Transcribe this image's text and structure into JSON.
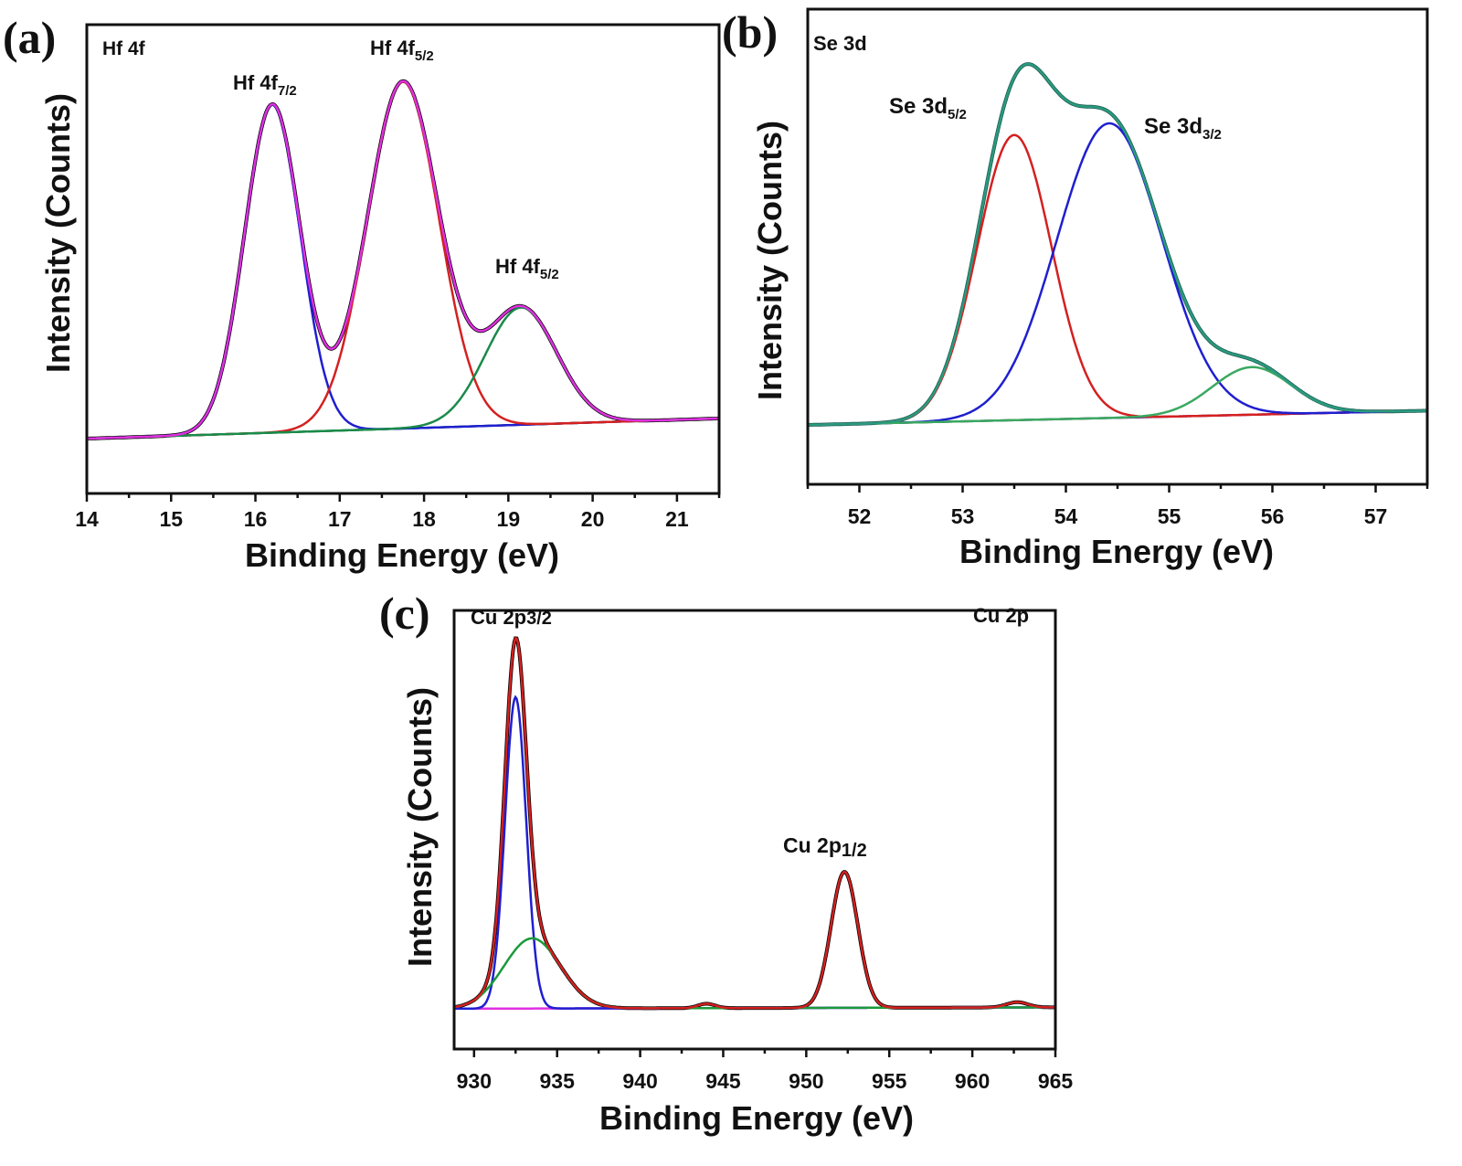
{
  "chart_data": [
    {
      "type": "line",
      "panel_label": "(a)",
      "title": "Hf 4f",
      "xlabel": "Binding Energy (eV)",
      "ylabel": "Intensity (Counts)",
      "xlim": [
        14,
        21.5
      ],
      "ylim": [
        0,
        1
      ],
      "xticks": [
        14,
        15,
        16,
        17,
        18,
        19,
        20,
        21
      ],
      "y_units": "arbitrary (no tick labels)",
      "grid": false,
      "background": {
        "x": [
          14,
          21.5
        ],
        "y": [
          0.117,
          0.16
        ],
        "color": "#1a8a3a"
      },
      "peaks": [
        {
          "center": 16.2,
          "amplitude": 0.7,
          "fwhm": 0.78,
          "color": "#1f1fd0"
        },
        {
          "center": 17.75,
          "amplitude": 0.74,
          "fwhm": 1.0,
          "color": "#d42020"
        },
        {
          "center": 19.15,
          "amplitude": 0.25,
          "fwhm": 1.0,
          "color": "#1a8a4a"
        }
      ],
      "data_color": "#000000",
      "fit_color": "#e030e0",
      "annotations": [
        {
          "text": "Hf 4f",
          "sub": "7/2"
        },
        {
          "text": "Hf 4f",
          "sub": "5/2"
        },
        {
          "text": "Hf 4f",
          "sub": "5/2"
        }
      ]
    },
    {
      "type": "line",
      "panel_label": "(b)",
      "title": "Se 3d",
      "xlabel": "Binding Energy (eV)",
      "ylabel": "Intensity (Counts)",
      "xlim": [
        51.5,
        57.5
      ],
      "ylim": [
        0,
        1
      ],
      "xticks": [
        52,
        53,
        54,
        55,
        56,
        57
      ],
      "y_units": "arbitrary (no tick labels)",
      "grid": false,
      "background": {
        "x": [
          51.5,
          57.5
        ],
        "y": [
          0.125,
          0.155
        ],
        "color": "#6a2a8a"
      },
      "peaks": [
        {
          "center": 53.5,
          "amplitude": 0.6,
          "fwhm": 0.85,
          "color": "#d42020"
        },
        {
          "center": 54.42,
          "amplitude": 0.62,
          "fwhm": 1.2,
          "color": "#1f1fd0"
        },
        {
          "center": 55.8,
          "amplitude": 0.1,
          "fwhm": 0.9,
          "color": "#3aa860"
        }
      ],
      "data_color": "#1a5a4a",
      "fit_color": "#2a9a80",
      "annotations": [
        {
          "text": "Se 3d",
          "sub": "5/2"
        },
        {
          "text": "Se 3d",
          "sub": "3/2"
        }
      ]
    },
    {
      "type": "line",
      "panel_label": "(c)",
      "title": "Cu 2p",
      "xlabel": "Binding Energy (eV)",
      "ylabel": "Intensity (Counts)",
      "xlim": [
        928.8,
        965
      ],
      "ylim": [
        0,
        1
      ],
      "xticks": [
        930,
        935,
        940,
        945,
        950,
        955,
        960,
        965
      ],
      "y_units": "arbitrary (no tick labels)",
      "grid": false,
      "background": {
        "x": [
          928.8,
          965
        ],
        "y": [
          0.092,
          0.095
        ],
        "color": "#e030e0"
      },
      "peaks": [
        {
          "center": 932.5,
          "amplitude": 0.71,
          "fwhm": 1.5,
          "color": "#1f1fd0"
        },
        {
          "center": 933.5,
          "amplitude": 0.16,
          "fwhm": 4.0,
          "color": "#1a9a3a"
        },
        {
          "center": 952.3,
          "amplitude": 0.31,
          "fwhm": 1.9,
          "color": "#d42020"
        },
        {
          "center": 944.0,
          "amplitude": 0.01,
          "fwhm": 1.2,
          "color": "#d42020"
        },
        {
          "center": 962.7,
          "amplitude": 0.012,
          "fwhm": 1.5,
          "color": "#d42020"
        }
      ],
      "component_count": 2,
      "data_color": "#000000",
      "fit_color": "#d42020",
      "annotations": [
        {
          "text": "Cu 2p",
          "sub": "3/2"
        },
        {
          "text": "Cu 2p",
          "sub": "1/2"
        }
      ]
    }
  ]
}
